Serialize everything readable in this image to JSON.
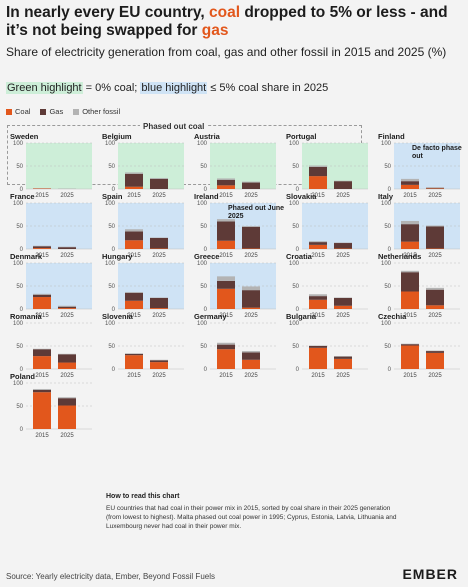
{
  "title": {
    "part1": "In nearly every EU country, ",
    "coal_word": "coal",
    "part2": " dropped to 5% or less - and it’s not being swapped for ",
    "gas_word": "gas"
  },
  "subtitle": "Share of electricity generation from coal, gas and other fossil in 2015 and 2025 (%)",
  "highlight_note": {
    "green_text": "Green highlight",
    "green_rest": " = 0% coal; ",
    "blue_text": "blue highlight",
    "blue_rest": " ≤ 5% coal share in 2025"
  },
  "legend": [
    {
      "label": "Coal",
      "color": "#e2571c"
    },
    {
      "label": "Gas",
      "color": "#5e3a37"
    },
    {
      "label": "Other fossil",
      "color": "#b3b3b3"
    }
  ],
  "phased_out_label": "Phased out coal",
  "howto": {
    "title": "How to read this chart",
    "text": "EU countries that had coal in their power mix in 2015, sorted by coal share in their 2025 generation (from lowest to highest). Malta phased out coal power in 1995; Cyprus, Estonia, Latvia, Lithuania and Luxembourg never had coal in their power mix."
  },
  "source": "Source: Yearly electricity data, Ember, Beyond Fossil Fuels",
  "brand": "EMBER",
  "colors": {
    "coal": "#e2571c",
    "gas": "#5e3a37",
    "other": "#b3b3b3",
    "green_highlight": "#cdeed8",
    "blue_highlight": "#cfe3f5"
  },
  "chart_data": {
    "type": "bar",
    "stacked": true,
    "categories": [
      "2015",
      "2025"
    ],
    "series_names": [
      "Coal",
      "Gas",
      "Other fossil"
    ],
    "ylim": [
      0,
      100
    ],
    "yticks": [
      0,
      50,
      100
    ],
    "panels": [
      {
        "country": "Sweden",
        "highlight": "green",
        "values": {
          "coal": [
            1,
            0
          ],
          "gas": [
            0,
            0
          ],
          "other": [
            1,
            1
          ]
        }
      },
      {
        "country": "Belgium",
        "highlight": "green",
        "values": {
          "coal": [
            5,
            0
          ],
          "gas": [
            28,
            22
          ],
          "other": [
            3,
            2
          ]
        }
      },
      {
        "country": "Austria",
        "highlight": "green",
        "values": {
          "coal": [
            8,
            0
          ],
          "gas": [
            12,
            14
          ],
          "other": [
            3,
            2
          ]
        }
      },
      {
        "country": "Portugal",
        "highlight": "green",
        "values": {
          "coal": [
            28,
            0
          ],
          "gas": [
            20,
            17
          ],
          "other": [
            3,
            1
          ]
        }
      },
      {
        "country": "Finland",
        "highlight": "blue",
        "annotation": "De facto phase out",
        "values": {
          "coal": [
            9,
            1
          ],
          "gas": [
            8,
            1
          ],
          "other": [
            5,
            2
          ]
        }
      },
      {
        "country": "France",
        "highlight": "blue",
        "values": {
          "coal": [
            2,
            0
          ],
          "gas": [
            4,
            4
          ],
          "other": [
            1,
            1
          ]
        }
      },
      {
        "country": "Spain",
        "highlight": "blue",
        "values": {
          "coal": [
            19,
            1
          ],
          "gas": [
            19,
            23
          ],
          "other": [
            5,
            1
          ]
        }
      },
      {
        "country": "Ireland",
        "highlight": "blue",
        "annotation": "Phased out June 2025",
        "values": {
          "coal": [
            18,
            1
          ],
          "gas": [
            42,
            47
          ],
          "other": [
            5,
            2
          ]
        }
      },
      {
        "country": "Slovakia",
        "highlight": "blue",
        "values": {
          "coal": [
            9,
            1
          ],
          "gas": [
            6,
            12
          ],
          "other": [
            2,
            1
          ]
        }
      },
      {
        "country": "Italy",
        "highlight": "blue",
        "values": {
          "coal": [
            16,
            1
          ],
          "gas": [
            38,
            48
          ],
          "other": [
            7,
            2
          ]
        }
      },
      {
        "country": "Denmark",
        "highlight": "blue",
        "values": {
          "coal": [
            26,
            2
          ],
          "gas": [
            5,
            3
          ],
          "other": [
            2,
            2
          ]
        }
      },
      {
        "country": "Hungary",
        "highlight": "blue",
        "values": {
          "coal": [
            18,
            2
          ],
          "gas": [
            17,
            22
          ],
          "other": [
            2,
            1
          ]
        }
      },
      {
        "country": "Greece",
        "highlight": "blue",
        "values": {
          "coal": [
            44,
            3
          ],
          "gas": [
            17,
            38
          ],
          "other": [
            10,
            8
          ]
        }
      },
      {
        "country": "Croatia",
        "highlight": "none",
        "values": {
          "coal": [
            20,
            7
          ],
          "gas": [
            8,
            17
          ],
          "other": [
            4,
            1
          ]
        }
      },
      {
        "country": "Netherlands",
        "highlight": "none",
        "values": {
          "coal": [
            38,
            8
          ],
          "gas": [
            42,
            34
          ],
          "other": [
            3,
            4
          ]
        }
      },
      {
        "country": "Romania",
        "highlight": "none",
        "values": {
          "coal": [
            28,
            14
          ],
          "gas": [
            15,
            18
          ],
          "other": [
            1,
            1
          ]
        }
      },
      {
        "country": "Slovenia",
        "highlight": "none",
        "values": {
          "coal": [
            30,
            15
          ],
          "gas": [
            3,
            4
          ],
          "other": [
            1,
            1
          ]
        }
      },
      {
        "country": "Germany",
        "highlight": "none",
        "values": {
          "coal": [
            43,
            20
          ],
          "gas": [
            10,
            16
          ],
          "other": [
            4,
            3
          ]
        }
      },
      {
        "country": "Bulgaria",
        "highlight": "none",
        "values": {
          "coal": [
            46,
            22
          ],
          "gas": [
            4,
            5
          ],
          "other": [
            1,
            1
          ]
        }
      },
      {
        "country": "Czechia",
        "highlight": "none",
        "values": {
          "coal": [
            51,
            35
          ],
          "gas": [
            3,
            4
          ],
          "other": [
            1,
            1
          ]
        }
      },
      {
        "country": "Poland",
        "highlight": "none",
        "values": {
          "coal": [
            80,
            51
          ],
          "gas": [
            5,
            16
          ],
          "other": [
            2,
            2
          ]
        }
      }
    ]
  }
}
